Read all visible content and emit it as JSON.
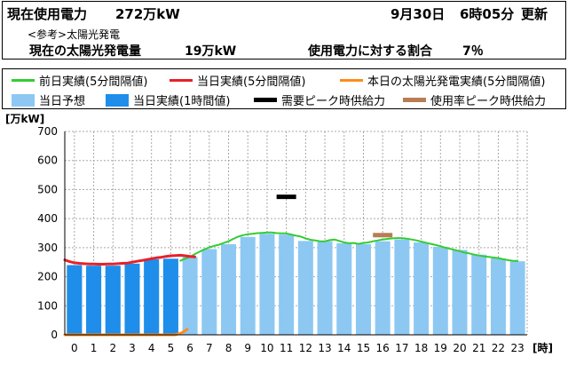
{
  "header": {
    "current_label": "現在使用電力",
    "current_value": "272万kW",
    "date": "9月30日",
    "time": "6時05分",
    "update_label": "更新",
    "ref_note": "<参考>太陽光発電",
    "solar_label": "現在の太陽光発電量",
    "solar_value": "19万kW",
    "ratio_label": "使用電力に対する割合",
    "ratio_value": "7％"
  },
  "legend": {
    "items": [
      {
        "label": "前日実績(5分間隔値)",
        "color": "#33cc33",
        "kind": "line"
      },
      {
        "label": "当日実績(5分間隔値)",
        "color": "#e8202a",
        "kind": "line"
      },
      {
        "label": "本日の太陽光発電実績(5分間隔値)",
        "color": "#ff8c1a",
        "kind": "line"
      },
      {
        "label": "当日予想",
        "color": "#8dc8f3",
        "kind": "box"
      },
      {
        "label": "当日実績(1時間値)",
        "color": "#1e8eea",
        "kind": "box"
      },
      {
        "label": "需要ピーク時供給力",
        "color": "#000000",
        "kind": "line"
      },
      {
        "label": "使用率ピーク時供給力",
        "color": "#b87d54",
        "kind": "line"
      }
    ]
  },
  "chart_data": {
    "type": "bar",
    "ylabel": "[万kW]",
    "xlabel": "[時]",
    "ylim": [
      0,
      700
    ],
    "yticks": [
      0,
      100,
      200,
      300,
      400,
      500,
      600,
      700
    ],
    "categories": [
      "0",
      "1",
      "2",
      "3",
      "4",
      "5",
      "6",
      "7",
      "8",
      "9",
      "10",
      "11",
      "12",
      "13",
      "14",
      "15",
      "16",
      "17",
      "18",
      "19",
      "20",
      "21",
      "22",
      "23"
    ],
    "series": [
      {
        "name": "当日予想",
        "values": [
          235,
          233,
          233,
          236,
          245,
          252,
          268,
          295,
          312,
          337,
          348,
          345,
          323,
          322,
          315,
          312,
          322,
          328,
          318,
          303,
          292,
          276,
          263,
          253
        ]
      },
      {
        "name": "当日実績(1時間値)",
        "values": [
          240,
          238,
          238,
          245,
          260,
          262,
          null,
          null,
          null,
          null,
          null,
          null,
          null,
          null,
          null,
          null,
          null,
          null,
          null,
          null,
          null,
          null,
          null,
          null
        ]
      }
    ],
    "prev_day_5min": {
      "name": "前日実績(5分間隔値)",
      "start_hour": 5.5,
      "step_hours": 0.25,
      "values": [
        255,
        262,
        268,
        278,
        286,
        294,
        301,
        306,
        310,
        316,
        322,
        330,
        338,
        343,
        346,
        348,
        350,
        351,
        352,
        352,
        350,
        349,
        349,
        345,
        341,
        338,
        332,
        327,
        325,
        322,
        322,
        326,
        328,
        323,
        318,
        315,
        316,
        313,
        316,
        318,
        322,
        325,
        328,
        330,
        332,
        333,
        333,
        331,
        328,
        325,
        321,
        317,
        313,
        309,
        305,
        300,
        296,
        292,
        288,
        283,
        280,
        276,
        273,
        270,
        268,
        266,
        264,
        260,
        257,
        255,
        254
      ]
    },
    "today_5min": {
      "name": "当日実績(5分間隔値)",
      "start_hour": -0.5,
      "step_hours": 0.25,
      "values": [
        258,
        252,
        248,
        246,
        245,
        244,
        244,
        243,
        243,
        244,
        244,
        245,
        246,
        247,
        250,
        253,
        256,
        259,
        262,
        265,
        267,
        270,
        272,
        273,
        274,
        272,
        270,
        268
      ]
    },
    "solar_5min": {
      "name": "本日の太陽光発電実績(5分間隔値)",
      "values": [
        [
          -0.5,
          0
        ],
        [
          5.2,
          0
        ],
        [
          5.5,
          5
        ],
        [
          5.7,
          12
        ],
        [
          5.85,
          19
        ]
      ]
    },
    "demand_peak_supply": {
      "name": "需要ピーク時供給力",
      "hour": 11,
      "value": 475
    },
    "usage_peak_supply": {
      "name": "使用率ピーク時供給力",
      "hour": 16,
      "value": 343
    }
  }
}
